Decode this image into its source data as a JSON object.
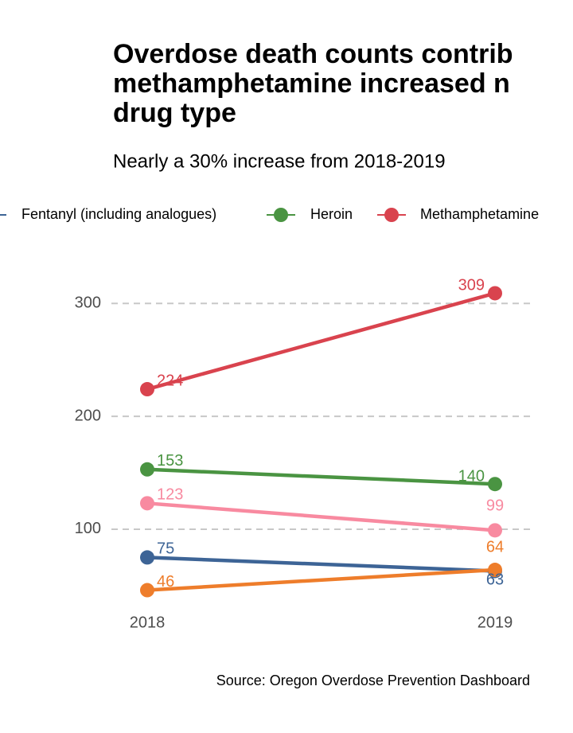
{
  "chart_data": {
    "type": "line",
    "title": [
      "Overdose death counts contrib",
      "methamphetamine increased n",
      "drug type"
    ],
    "subtitle": "Nearly a 30% increase from 2018-2019",
    "caption": "Source: Oregon Overdose Prevention Dashboard",
    "categories": [
      "2018",
      "2019"
    ],
    "series": [
      {
        "name": "Fentanyl (including analogues)",
        "color": "#3d6496",
        "values": [
          75,
          63
        ]
      },
      {
        "name": "Heroin",
        "color": "#4a9442",
        "values": [
          153,
          140
        ]
      },
      {
        "name": "Methamphetamine",
        "color": "#d9434e",
        "values": [
          224,
          309
        ]
      },
      {
        "color": "#f88aa0",
        "values": [
          123,
          99
        ]
      },
      {
        "color": "#ee7d2b",
        "values": [
          46,
          64
        ]
      }
    ],
    "ylim": [
      33,
      322
    ],
    "yticks": [
      100,
      200,
      300
    ],
    "grid": true,
    "legend": "top"
  }
}
